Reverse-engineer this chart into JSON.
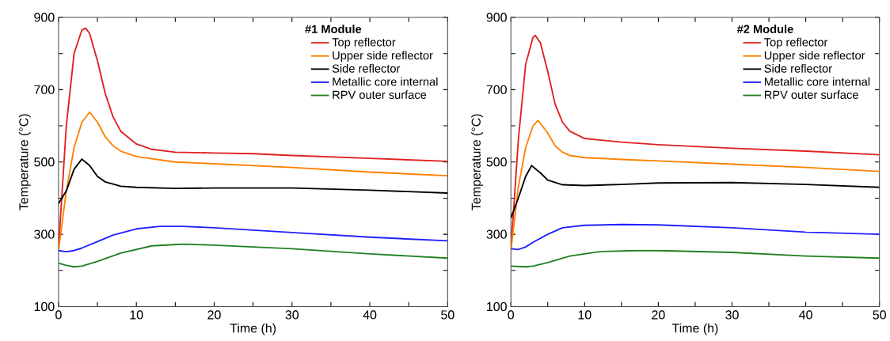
{
  "chart_data": [
    {
      "type": "line",
      "legend_title": "#1 Module",
      "xlabel": "Time (h)",
      "ylabel": "Temperature (°C)",
      "xlim": [
        0,
        50
      ],
      "ylim": [
        100,
        900
      ],
      "xticks": [
        0,
        {
          "value": 5,
          "label": null
        },
        10,
        {
          "value": 15,
          "label": null
        },
        20,
        {
          "value": 25,
          "label": null
        },
        30,
        {
          "value": 35,
          "label": null
        },
        40,
        {
          "value": 45,
          "label": null
        },
        50
      ],
      "yticks": [
        100,
        {
          "value": 200,
          "label": null
        },
        300,
        {
          "value": 400,
          "label": null
        },
        500,
        {
          "value": 600,
          "label": null
        },
        700,
        {
          "value": 800,
          "label": null
        },
        900
      ],
      "legend": "top right",
      "line_style": "solid",
      "marker": "none",
      "grid": false,
      "series": [
        {
          "name": "Top reflector",
          "color": "#e02020",
          "x": [
            0,
            1,
            2,
            3,
            3.5,
            4,
            5,
            6,
            7,
            8,
            10,
            12,
            15,
            20,
            25,
            30,
            40,
            50
          ],
          "values": [
            260,
            600,
            800,
            865,
            870,
            855,
            780,
            690,
            625,
            585,
            550,
            535,
            527,
            525,
            523,
            518,
            510,
            502
          ]
        },
        {
          "name": "Upper side reflector",
          "color": "#ff8000",
          "x": [
            0,
            1,
            2,
            3,
            4,
            5,
            6,
            7,
            8,
            10,
            15,
            20,
            30,
            40,
            50
          ],
          "values": [
            255,
            420,
            540,
            610,
            638,
            610,
            570,
            545,
            530,
            515,
            500,
            495,
            485,
            472,
            462
          ]
        },
        {
          "name": "Side reflector",
          "color": "#000000",
          "x": [
            0,
            1,
            2,
            3,
            4,
            5,
            6,
            8,
            10,
            15,
            20,
            30,
            40,
            50
          ],
          "values": [
            385,
            420,
            480,
            508,
            490,
            460,
            445,
            433,
            430,
            427,
            428,
            428,
            422,
            414
          ]
        },
        {
          "name": "Metallic core internal",
          "color": "#2020ff",
          "x": [
            0,
            1,
            2,
            3,
            5,
            7,
            10,
            13,
            16,
            20,
            30,
            40,
            50
          ],
          "values": [
            255,
            252,
            255,
            262,
            280,
            298,
            315,
            322,
            322,
            318,
            305,
            292,
            282
          ]
        },
        {
          "name": "RPV outer surface",
          "color": "#208020",
          "x": [
            0,
            1,
            2,
            3,
            5,
            8,
            12,
            16,
            20,
            30,
            40,
            50
          ],
          "values": [
            220,
            214,
            210,
            212,
            225,
            248,
            268,
            273,
            270,
            260,
            246,
            234
          ]
        }
      ]
    },
    {
      "type": "line",
      "legend_title": "#2 Module",
      "xlabel": "Time (h)",
      "ylabel": "Temperature (°C)",
      "xlim": [
        0,
        50
      ],
      "ylim": [
        100,
        900
      ],
      "xticks": [
        0,
        {
          "value": 5,
          "label": null
        },
        10,
        {
          "value": 15,
          "label": null
        },
        20,
        {
          "value": 25,
          "label": null
        },
        30,
        {
          "value": 35,
          "label": null
        },
        40,
        {
          "value": 45,
          "label": null
        },
        50
      ],
      "yticks": [
        100,
        {
          "value": 200,
          "label": null
        },
        300,
        {
          "value": 400,
          "label": null
        },
        500,
        {
          "value": 600,
          "label": null
        },
        700,
        {
          "value": 800,
          "label": null
        },
        900
      ],
      "legend": "top right",
      "line_style": "solid",
      "marker": "none",
      "grid": false,
      "series": [
        {
          "name": "Top reflector",
          "color": "#e02020",
          "x": [
            0,
            1,
            2,
            3,
            3.3,
            4,
            5,
            6,
            7,
            8,
            10,
            15,
            20,
            30,
            40,
            50
          ],
          "values": [
            255,
            560,
            770,
            845,
            850,
            830,
            750,
            660,
            610,
            585,
            565,
            555,
            548,
            538,
            530,
            520
          ]
        },
        {
          "name": "Upper side reflector",
          "color": "#ff8000",
          "x": [
            0,
            1,
            2,
            3,
            3.7,
            5,
            6,
            7,
            8,
            10,
            15,
            20,
            30,
            40,
            50
          ],
          "values": [
            255,
            430,
            540,
            600,
            615,
            580,
            545,
            527,
            518,
            512,
            507,
            503,
            494,
            485,
            474
          ]
        },
        {
          "name": "Side reflector",
          "color": "#000000",
          "x": [
            0,
            1,
            2,
            2.8,
            4,
            5,
            7,
            10,
            15,
            20,
            30,
            40,
            50
          ],
          "values": [
            345,
            400,
            460,
            490,
            470,
            450,
            437,
            435,
            438,
            442,
            443,
            438,
            430
          ]
        },
        {
          "name": "Metallic core internal",
          "color": "#2020ff",
          "x": [
            0,
            1,
            2,
            3,
            5,
            7,
            10,
            15,
            20,
            30,
            40,
            50
          ],
          "values": [
            260,
            258,
            265,
            278,
            300,
            318,
            325,
            327,
            326,
            318,
            306,
            300
          ]
        },
        {
          "name": "RPV outer surface",
          "color": "#208020",
          "x": [
            0,
            2,
            3,
            5,
            8,
            12,
            17,
            20,
            30,
            40,
            50
          ],
          "values": [
            212,
            210,
            212,
            222,
            240,
            252,
            255,
            255,
            250,
            240,
            234
          ]
        }
      ]
    }
  ]
}
